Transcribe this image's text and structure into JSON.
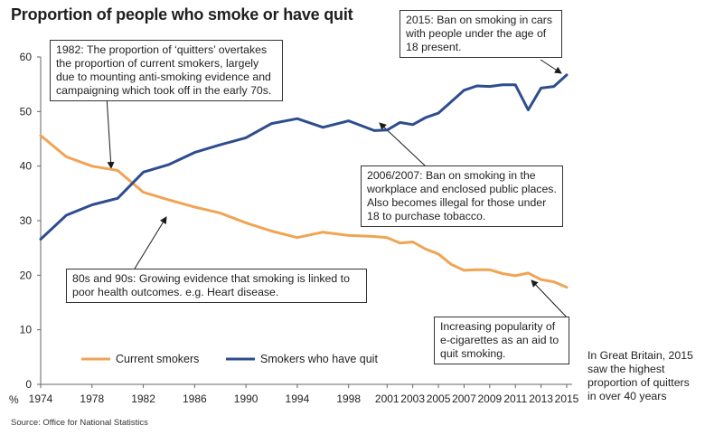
{
  "title": "Proportion of people who smoke or have quit",
  "source": "Source: Office for National Statistics",
  "side_note": "In Great Britain, 2015 saw the highest proportion of quitters in over 40 years",
  "annotations": {
    "a1982": "1982: The proportion of ‘quitters’ overtakes the proportion of current smokers, largely due to mounting anti-smoking evidence and campaigning which took off in the early 70s.",
    "a2015": "2015: Ban on smoking in cars with people under the age of 18 present.",
    "a2006": "2006/2007: Ban on smoking in the workplace and enclosed public places. Also becomes illegal for those under 18 to purchase tobacco.",
    "a80s": "80s and 90s: Growing evidence that smoking is linked to poor health outcomes. e.g. Heart disease.",
    "aecig": "Increasing popularity of e-cigarettes as an aid to quit smoking."
  },
  "colors": {
    "smokers": "#f0a454",
    "quit": "#2e4d8f"
  },
  "chart_data": {
    "type": "line",
    "title": "Proportion of people who smoke or have quit",
    "ylabel": "%",
    "ylim": [
      0,
      60
    ],
    "yticks": [
      0,
      10,
      20,
      30,
      40,
      50,
      60
    ],
    "xticks": [
      1974,
      1978,
      1982,
      1986,
      1990,
      1994,
      1998,
      2001,
      2003,
      2005,
      2007,
      2009,
      2011,
      2013,
      2015
    ],
    "x": [
      1974,
      1976,
      1978,
      1980,
      1982,
      1984,
      1986,
      1988,
      1990,
      1992,
      1994,
      1996,
      1998,
      2000,
      2001,
      2002,
      2003,
      2004,
      2005,
      2006,
      2007,
      2008,
      2009,
      2010,
      2011,
      2012,
      2013,
      2014,
      2015
    ],
    "series": [
      {
        "name": "Current smokers",
        "values": [
          45.6,
          41.7,
          40.0,
          39.2,
          35.2,
          33.8,
          32.5,
          31.4,
          29.6,
          28.1,
          26.9,
          27.9,
          27.3,
          27.1,
          26.9,
          25.9,
          26.1,
          24.8,
          23.9,
          22.0,
          20.9,
          21.0,
          21.0,
          20.3,
          19.9,
          20.4,
          19.2,
          18.8,
          17.8
        ]
      },
      {
        "name": "Smokers who have quit",
        "values": [
          26.6,
          31.0,
          32.9,
          34.1,
          38.9,
          40.3,
          42.5,
          43.9,
          45.2,
          47.8,
          48.7,
          47.1,
          48.3,
          46.5,
          46.6,
          48.0,
          47.6,
          48.9,
          49.7,
          51.8,
          53.9,
          54.7,
          54.6,
          54.9,
          54.9,
          50.3,
          54.3,
          54.6,
          56.7
        ]
      }
    ]
  }
}
